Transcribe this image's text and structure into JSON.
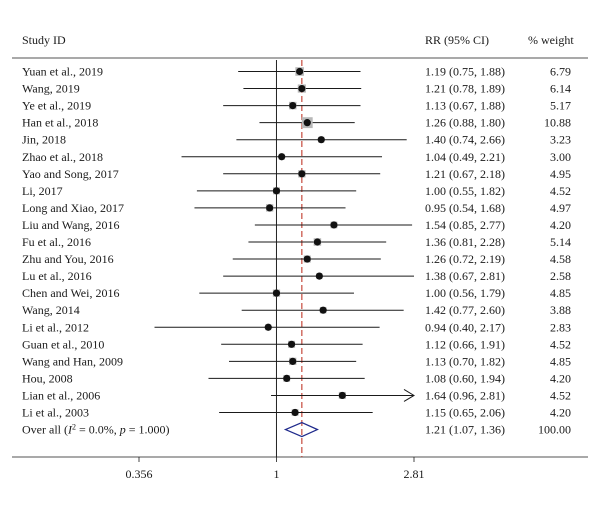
{
  "chart_data": {
    "type": "forest",
    "header": {
      "study": "Study ID",
      "rr": "RR (95% CI)",
      "weight": "% weight"
    },
    "x_scale": "log",
    "xlim": [
      0.356,
      2.81
    ],
    "ticks": [
      {
        "value": 0.356,
        "label": "0.356"
      },
      {
        "value": 1,
        "label": "1"
      },
      {
        "value": 2.81,
        "label": "2.81"
      }
    ],
    "null_line": 1,
    "pooled_line": 1.21,
    "studies": [
      {
        "label": "Yuan et al., 2019",
        "rr": 1.19,
        "lo": 0.75,
        "hi": 1.88,
        "rr_text": "1.19 (0.75, 1.88)",
        "weight": "6.79"
      },
      {
        "label": "Wang, 2019",
        "rr": 1.21,
        "lo": 0.78,
        "hi": 1.89,
        "rr_text": "1.21 (0.78, 1.89)",
        "weight": "6.14"
      },
      {
        "label": "Ye et al., 2019",
        "rr": 1.13,
        "lo": 0.67,
        "hi": 1.88,
        "rr_text": "1.13 (0.67, 1.88)",
        "weight": "5.17"
      },
      {
        "label": "Han et al., 2018",
        "rr": 1.26,
        "lo": 0.88,
        "hi": 1.8,
        "rr_text": "1.26 (0.88, 1.80)",
        "weight": "10.88"
      },
      {
        "label": "Jin, 2018",
        "rr": 1.4,
        "lo": 0.74,
        "hi": 2.66,
        "rr_text": "1.40 (0.74, 2.66)",
        "weight": "3.23"
      },
      {
        "label": "Zhao et al., 2018",
        "rr": 1.04,
        "lo": 0.49,
        "hi": 2.21,
        "rr_text": "1.04 (0.49, 2.21)",
        "weight": "3.00"
      },
      {
        "label": "Yao and Song, 2017",
        "rr": 1.21,
        "lo": 0.67,
        "hi": 2.18,
        "rr_text": "1.21 (0.67, 2.18)",
        "weight": "4.95"
      },
      {
        "label": "Li, 2017",
        "rr": 1.0,
        "lo": 0.55,
        "hi": 1.82,
        "rr_text": "1.00 (0.55, 1.82)",
        "weight": "4.52"
      },
      {
        "label": "Long and Xiao, 2017",
        "rr": 0.95,
        "lo": 0.54,
        "hi": 1.68,
        "rr_text": "0.95 (0.54, 1.68)",
        "weight": "4.97"
      },
      {
        "label": "Liu and Wang, 2016",
        "rr": 1.54,
        "lo": 0.85,
        "hi": 2.77,
        "rr_text": "1.54 (0.85, 2.77)",
        "weight": "4.20"
      },
      {
        "label": "Fu et al., 2016",
        "rr": 1.36,
        "lo": 0.81,
        "hi": 2.28,
        "rr_text": "1.36 (0.81, 2.28)",
        "weight": "5.14"
      },
      {
        "label": "Zhu and You, 2016",
        "rr": 1.26,
        "lo": 0.72,
        "hi": 2.19,
        "rr_text": "1.26 (0.72, 2.19)",
        "weight": "4.58"
      },
      {
        "label": "Lu et al., 2016",
        "rr": 1.38,
        "lo": 0.67,
        "hi": 2.81,
        "rr_text": "1.38 (0.67, 2.81)",
        "weight": "2.58"
      },
      {
        "label": "Chen and Wei, 2016",
        "rr": 1.0,
        "lo": 0.56,
        "hi": 1.79,
        "rr_text": "1.00 (0.56, 1.79)",
        "weight": "4.85"
      },
      {
        "label": "Wang, 2014",
        "rr": 1.42,
        "lo": 0.77,
        "hi": 2.6,
        "rr_text": "1.42 (0.77, 2.60)",
        "weight": "3.88"
      },
      {
        "label": "Li et al., 2012",
        "rr": 0.94,
        "lo": 0.4,
        "hi": 2.17,
        "rr_text": "0.94 (0.40, 2.17)",
        "weight": "2.83"
      },
      {
        "label": "Guan et al., 2010",
        "rr": 1.12,
        "lo": 0.66,
        "hi": 1.91,
        "rr_text": "1.12 (0.66, 1.91)",
        "weight": "4.52"
      },
      {
        "label": "Wang and Han, 2009",
        "rr": 1.13,
        "lo": 0.7,
        "hi": 1.82,
        "rr_text": "1.13 (0.70, 1.82)",
        "weight": "4.85"
      },
      {
        "label": "Hou, 2008",
        "rr": 1.08,
        "lo": 0.6,
        "hi": 1.94,
        "rr_text": "1.08 (0.60, 1.94)",
        "weight": "4.20"
      },
      {
        "label": "Lian et al., 2006",
        "rr": 1.64,
        "lo": 0.96,
        "hi": 2.81,
        "rr_text": "1.64 (0.96, 2.81)",
        "weight": "4.52",
        "arrow": true
      },
      {
        "label": "Li et al., 2003",
        "rr": 1.15,
        "lo": 0.65,
        "hi": 2.06,
        "rr_text": "1.15 (0.65, 2.06)",
        "weight": "4.20"
      }
    ],
    "overall": {
      "label_prefix": "Over all (",
      "label_i2": "I",
      "label_sup": "2",
      "label_mid": " = 0.0%, ",
      "label_p": "p",
      "label_end": " = 1.000)",
      "rr": 1.21,
      "lo": 1.07,
      "hi": 1.36,
      "rr_text": "1.21 (1.07, 1.36)",
      "weight": "100.00"
    },
    "colors": {
      "text": "#1a1a1a",
      "line": "#1a1a1a",
      "null_line": "#222222",
      "pooled_line": "#c0392b",
      "marker": "#111111",
      "weight_box": "#b8b8b8",
      "diamond": "#1f2a8c"
    }
  }
}
